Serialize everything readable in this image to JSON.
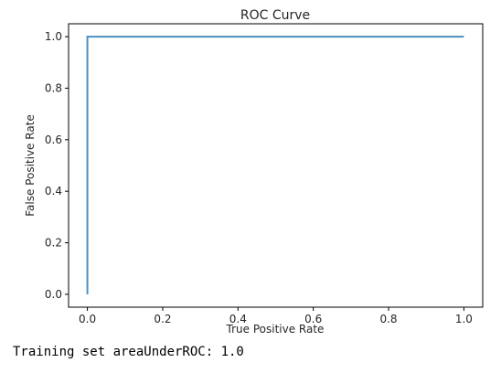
{
  "chart_data": {
    "type": "line",
    "title": "ROC Curve",
    "xlabel": "True Positive Rate",
    "ylabel": "False Positive Rate",
    "xlim": [
      -0.05,
      1.05
    ],
    "ylim": [
      -0.05,
      1.05
    ],
    "x_ticks": [
      0.0,
      0.2,
      0.4,
      0.6,
      0.8,
      1.0
    ],
    "y_ticks": [
      0.0,
      0.2,
      0.4,
      0.6,
      0.8,
      1.0
    ],
    "x_tick_labels": [
      "0.0",
      "0.2",
      "0.4",
      "0.6",
      "0.8",
      "1.0"
    ],
    "y_tick_labels": [
      "0.0",
      "0.2",
      "0.4",
      "0.6",
      "0.8",
      "1.0"
    ],
    "grid": false,
    "series": [
      {
        "x": [
          0.0,
          0.0,
          1.0
        ],
        "y": [
          0.0,
          1.0,
          1.0
        ],
        "color": "#4c8fbf"
      }
    ]
  },
  "output": {
    "text": "Training set areaUnderROC: 1.0"
  }
}
